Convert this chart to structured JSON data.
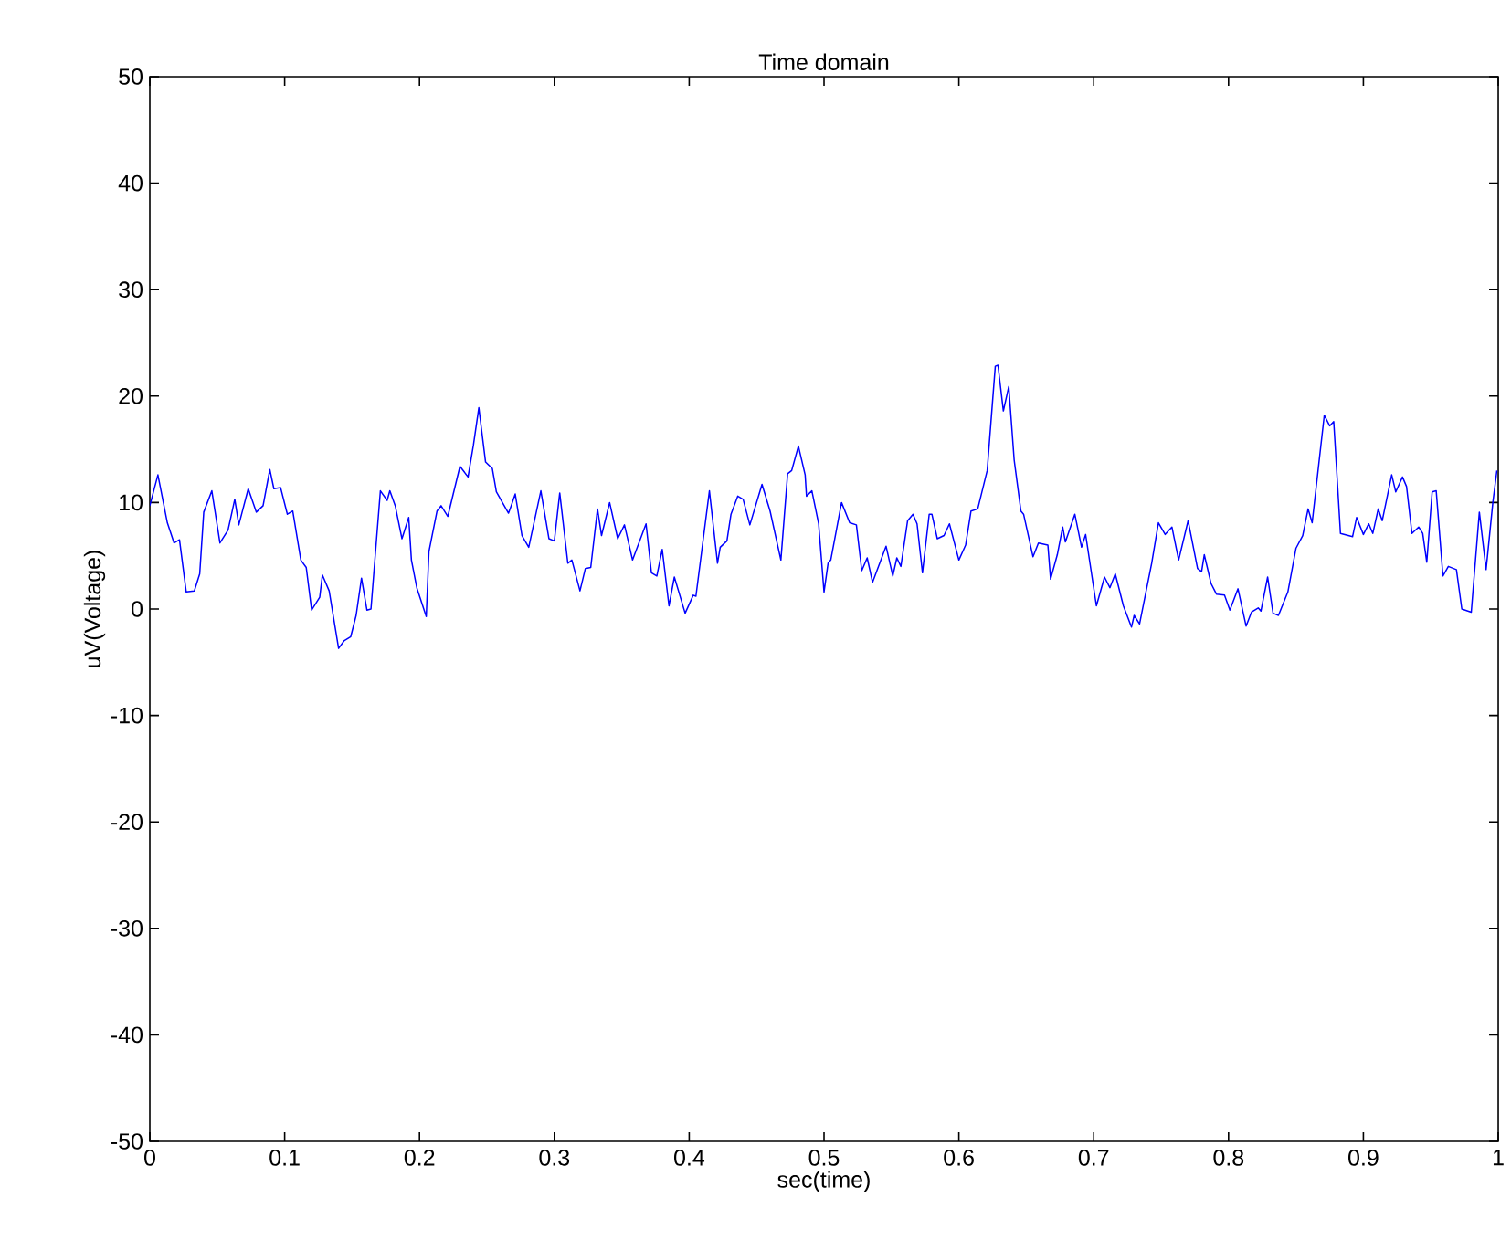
{
  "chart_data": {
    "type": "line",
    "title": "Time domain",
    "xlabel": "sec(time)",
    "ylabel": "uV(Voltage)",
    "xlim": [
      0,
      1
    ],
    "ylim": [
      -50,
      50
    ],
    "xticks": [
      0,
      0.1,
      0.2,
      0.3,
      0.4,
      0.5,
      0.6,
      0.7,
      0.8,
      0.9,
      1
    ],
    "yticks": [
      -50,
      -40,
      -30,
      -20,
      -10,
      0,
      10,
      20,
      30,
      40,
      50
    ],
    "marker": "none",
    "line_style": "solid",
    "series": [
      {
        "color": "#0000ff",
        "x": [
          0.0,
          0.006,
          0.013,
          0.018,
          0.022,
          0.027,
          0.033,
          0.037,
          0.04,
          0.046,
          0.052,
          0.058,
          0.063,
          0.066,
          0.073,
          0.079,
          0.084,
          0.089,
          0.092,
          0.097,
          0.102,
          0.106,
          0.112,
          0.116,
          0.12,
          0.126,
          0.128,
          0.133,
          0.14,
          0.144,
          0.149,
          0.153,
          0.157,
          0.161,
          0.164,
          0.171,
          0.176,
          0.178,
          0.182,
          0.187,
          0.192,
          0.194,
          0.198,
          0.205,
          0.207,
          0.213,
          0.216,
          0.221,
          0.23,
          0.236,
          0.24,
          0.244,
          0.249,
          0.254,
          0.257,
          0.266,
          0.268,
          0.271,
          0.276,
          0.281,
          0.29,
          0.296,
          0.3,
          0.304,
          0.31,
          0.313,
          0.319,
          0.323,
          0.327,
          0.332,
          0.335,
          0.341,
          0.347,
          0.352,
          0.358,
          0.368,
          0.372,
          0.376,
          0.38,
          0.385,
          0.389,
          0.397,
          0.403,
          0.405,
          0.415,
          0.421,
          0.423,
          0.428,
          0.431,
          0.436,
          0.44,
          0.445,
          0.454,
          0.46,
          0.468,
          0.473,
          0.476,
          0.481,
          0.486,
          0.487,
          0.491,
          0.496,
          0.5,
          0.503,
          0.505,
          0.513,
          0.519,
          0.524,
          0.528,
          0.532,
          0.536,
          0.546,
          0.551,
          0.554,
          0.557,
          0.562,
          0.566,
          0.569,
          0.573,
          0.578,
          0.58,
          0.584,
          0.589,
          0.593,
          0.6,
          0.605,
          0.609,
          0.614,
          0.621,
          0.627,
          0.629,
          0.633,
          0.637,
          0.641,
          0.646,
          0.648,
          0.655,
          0.659,
          0.666,
          0.668,
          0.673,
          0.677,
          0.679,
          0.686,
          0.691,
          0.694,
          0.702,
          0.708,
          0.712,
          0.716,
          0.722,
          0.728,
          0.73,
          0.734,
          0.743,
          0.748,
          0.753,
          0.758,
          0.763,
          0.77,
          0.777,
          0.78,
          0.782,
          0.787,
          0.791,
          0.797,
          0.801,
          0.807,
          0.813,
          0.817,
          0.822,
          0.824,
          0.829,
          0.833,
          0.837,
          0.844,
          0.85,
          0.855,
          0.859,
          0.862,
          0.871,
          0.875,
          0.878,
          0.883,
          0.892,
          0.895,
          0.9,
          0.904,
          0.907,
          0.911,
          0.914,
          0.921,
          0.924,
          0.929,
          0.932,
          0.936,
          0.941,
          0.944,
          0.947,
          0.951,
          0.954,
          0.959,
          0.963,
          0.969,
          0.973,
          0.98,
          0.986,
          0.991,
          0.996,
          0.999
        ],
        "values": [
          9.7,
          12.6,
          8.1,
          6.2,
          6.5,
          1.6,
          1.7,
          3.3,
          9.1,
          11.1,
          6.2,
          7.4,
          10.3,
          7.9,
          11.3,
          9.1,
          9.7,
          13.1,
          11.3,
          11.4,
          8.9,
          9.2,
          4.6,
          3.9,
          -0.1,
          1.1,
          3.2,
          1.7,
          -3.7,
          -3.0,
          -2.6,
          -0.6,
          2.9,
          -0.1,
          0.0,
          11.1,
          10.2,
          11.1,
          9.7,
          6.6,
          8.6,
          4.6,
          2.0,
          -0.7,
          5.4,
          9.2,
          9.7,
          8.7,
          13.4,
          12.4,
          15.4,
          18.9,
          13.8,
          13.2,
          11.0,
          9.0,
          9.7,
          10.8,
          6.9,
          5.8,
          11.1,
          6.6,
          6.4,
          10.9,
          4.3,
          4.6,
          1.7,
          3.8,
          3.9,
          9.4,
          6.9,
          10.0,
          6.6,
          7.9,
          4.6,
          8.0,
          3.4,
          3.1,
          5.6,
          0.3,
          3.0,
          -0.4,
          1.3,
          1.2,
          11.1,
          4.3,
          5.8,
          6.4,
          8.9,
          10.6,
          10.3,
          7.9,
          11.7,
          9.2,
          4.6,
          12.7,
          13.0,
          15.3,
          12.6,
          10.6,
          11.1,
          8.0,
          1.6,
          4.3,
          4.6,
          10.0,
          8.1,
          7.9,
          3.6,
          4.8,
          2.5,
          5.9,
          3.1,
          4.8,
          4.0,
          8.3,
          8.9,
          8.0,
          3.4,
          8.9,
          8.9,
          6.6,
          6.9,
          8.0,
          4.6,
          6.0,
          9.2,
          9.4,
          13.0,
          22.8,
          22.9,
          18.6,
          20.9,
          14.0,
          9.2,
          8.9,
          4.9,
          6.2,
          6.0,
          2.8,
          5.1,
          7.7,
          6.3,
          8.9,
          5.8,
          7.0,
          0.3,
          3.0,
          2.0,
          3.3,
          0.3,
          -1.7,
          -0.6,
          -1.4,
          4.3,
          8.1,
          7.0,
          7.7,
          4.6,
          8.3,
          3.8,
          3.5,
          5.1,
          2.4,
          1.4,
          1.3,
          -0.1,
          1.9,
          -1.6,
          -0.3,
          0.1,
          -0.2,
          3.0,
          -0.4,
          -0.6,
          1.6,
          5.7,
          6.9,
          9.4,
          8.1,
          18.2,
          17.2,
          17.6,
          7.1,
          6.8,
          8.6,
          7.0,
          8.0,
          7.1,
          9.4,
          8.3,
          12.6,
          11.0,
          12.4,
          11.5,
          7.1,
          7.7,
          7.1,
          4.4,
          11.0,
          11.1,
          3.1,
          4.0,
          3.7,
          0.0,
          -0.3,
          9.1,
          3.7,
          10.0,
          13.0
        ]
      }
    ]
  }
}
